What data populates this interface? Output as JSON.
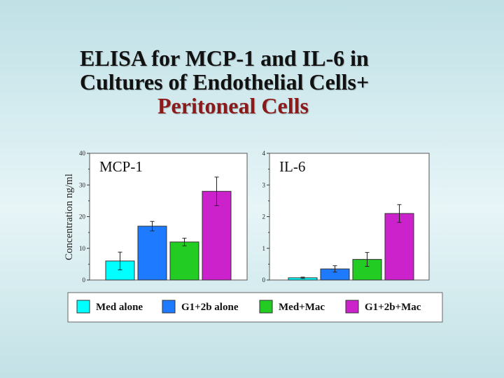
{
  "title": {
    "line1": "ELISA for MCP-1 and IL-6 in",
    "line2": "Cultures of Endothelial Cells+",
    "line3": "Peritoneal Cells"
  },
  "chart_data": {
    "type": "bar",
    "ylabel": "Concentration ng/ml",
    "categories": [
      "Med alone",
      "G1+2b alone",
      "Med+Mac",
      "G1+2b+Mac"
    ],
    "colors": [
      "#00ffff",
      "#1e7bff",
      "#22cc22",
      "#cc22cc"
    ],
    "legend_position": "bottom",
    "panels": [
      {
        "label": "MCP-1",
        "ylim": [
          0,
          40
        ],
        "yticks": [
          "0",
          "10",
          "20",
          "30",
          "40"
        ],
        "values": [
          6,
          17,
          12,
          28
        ],
        "errors": [
          2.8,
          1.5,
          1.2,
          4.5
        ]
      },
      {
        "label": "IL-6",
        "ylim": [
          0,
          4
        ],
        "yticks": [
          "0",
          "1",
          "2",
          "3",
          "4"
        ],
        "values": [
          0.07,
          0.35,
          0.65,
          2.1
        ],
        "errors": [
          0.02,
          0.1,
          0.22,
          0.28
        ]
      }
    ]
  }
}
